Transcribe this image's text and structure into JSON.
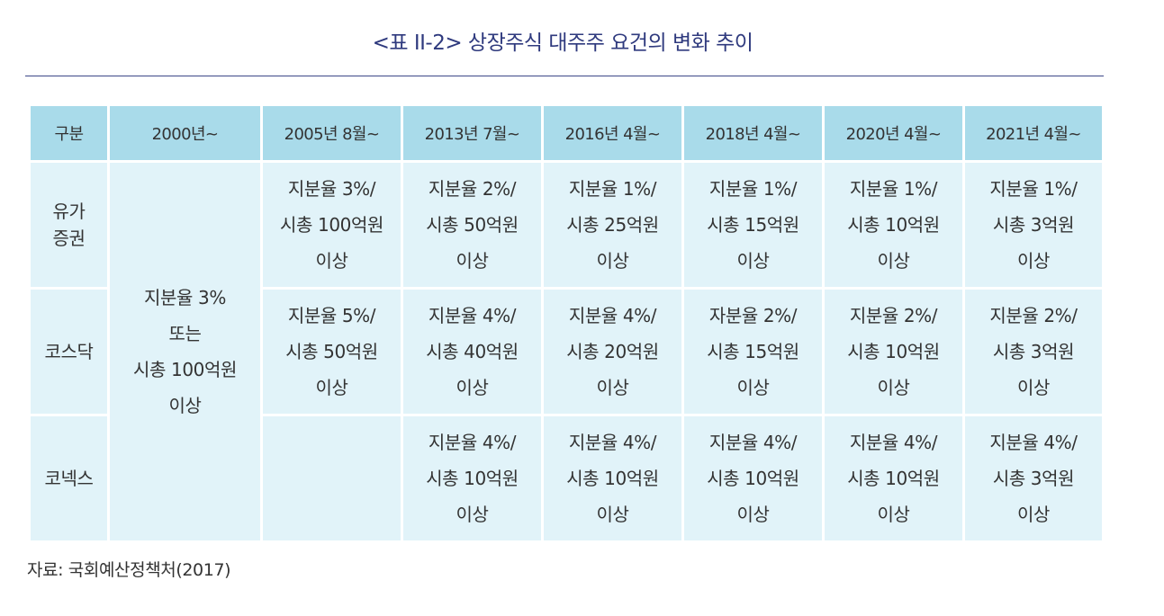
{
  "title": "<표 II-2> 상장주식 대주주 요건의 변화 추이",
  "header": [
    "구분",
    "2000년~",
    "2005년 8월~",
    "2013년 7월~",
    "2016년 4월~",
    "2018년 4월~",
    "2020년 4월~",
    "2021년 4월~"
  ],
  "rows": [
    {
      "label": [
        "유가",
        "증권"
      ],
      "cells": [
        [
          "지분율 3%/",
          "시총 100억원",
          "이상"
        ],
        [
          "지분율 2%/",
          "시총 50억원",
          "이상"
        ],
        [
          "지분율 1%/",
          "시총 25억원",
          "이상"
        ],
        [
          "지분율 1%/",
          "시총 15억원",
          "이상"
        ],
        [
          "지분율 1%/",
          "시총 10억원",
          "이상"
        ],
        [
          "지분율 1%/",
          "시총 3억원",
          "이상"
        ]
      ]
    },
    {
      "label": [
        "코스닥"
      ],
      "cells": [
        [
          "지분율 5%/",
          "시총 50억원",
          "이상"
        ],
        [
          "지분율 4%/",
          "시총 40억원",
          "이상"
        ],
        [
          "지분율 4%/",
          "시총 20억원",
          "이상"
        ],
        [
          "자분율 2%/",
          "시총 15억원",
          "이상"
        ],
        [
          "지분율 2%/",
          "시총 10억원",
          "이상"
        ],
        [
          "지분율 2%/",
          "시총 3억원",
          "이상"
        ]
      ]
    },
    {
      "label": [
        "코넥스"
      ],
      "cells": [
        [],
        [
          "지분율 4%/",
          "시총 10억원",
          "이상"
        ],
        [
          "지분율 4%/",
          "시총 10억원",
          "이상"
        ],
        [
          "지분율 4%/",
          "시총 10억원",
          "이상"
        ],
        [
          "지분율 4%/",
          "시총 10억원",
          "이상"
        ],
        [
          "지분율 4%/",
          "시총 3억원",
          "이상"
        ]
      ]
    }
  ],
  "merged_2000": [
    "지분율 3%",
    "또는",
    "시총 100억원",
    "이상"
  ],
  "source": "자료: 국회예산정책처(2017)",
  "colors": {
    "header_bg": "#a9dbea",
    "body_bg": "#e1f3f9",
    "title": "#2f3a7e"
  }
}
